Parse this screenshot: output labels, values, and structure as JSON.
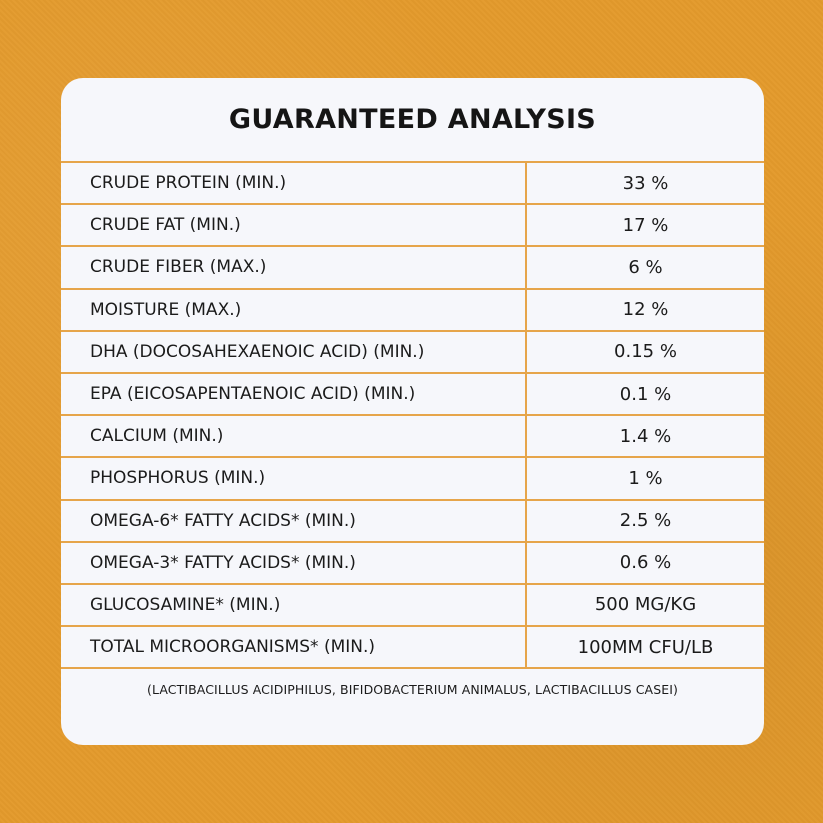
{
  "title": "GUARANTEED ANALYSIS",
  "rows": [
    {
      "label": "CRUDE PROTEIN (MIN.)",
      "value": "33 %"
    },
    {
      "label": "CRUDE FAT (MIN.)",
      "value": "17 %"
    },
    {
      "label": "CRUDE FIBER (MAX.)",
      "value": "6 %"
    },
    {
      "label": "MOISTURE (MAX.)",
      "value": "12 %"
    },
    {
      "label": "DHA (DOCOSAHEXAENOIC ACID) (MIN.)",
      "value": "0.15 %"
    },
    {
      "label": "EPA (EICOSAPENTAENOIC ACID) (MIN.)",
      "value": "0.1 %"
    },
    {
      "label": "CALCIUM (MIN.)",
      "value": "1.4 %"
    },
    {
      "label": "PHOSPHORUS (MIN.)",
      "value": "1 %"
    },
    {
      "label": "OMEGA-6* FATTY ACIDS* (MIN.)",
      "value": "2.5 %"
    },
    {
      "label": "OMEGA-3* FATTY ACIDS* (MIN.)",
      "value": "0.6 %"
    },
    {
      "label": "GLUCOSAMINE* (MIN.)",
      "value": "500 MG/KG"
    },
    {
      "label": "TOTAL MICROORGANISMS* (MIN.)",
      "value": "100MM CFU/LB"
    }
  ],
  "footnote": "(LACTIBACILLUS ACIDIPHILUS, BIFIDOBACTERIUM ANIMALUS, LACTIBACILLUS CASEI)",
  "colors": {
    "background": "#e39a2c",
    "card": "#f6f7fb",
    "rule": "#e6a54a",
    "text": "#151515"
  }
}
